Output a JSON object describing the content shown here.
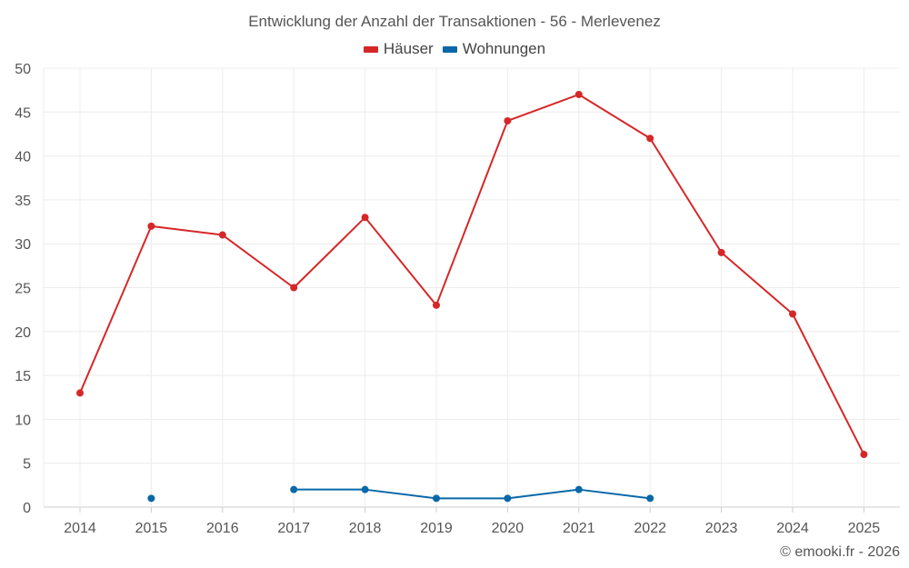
{
  "chart_data": {
    "type": "line",
    "title": "Entwicklung der Anzahl der Transaktionen - 56 - Merlevenez",
    "xlabel": "",
    "ylabel": "",
    "categories": [
      "2014",
      "2015",
      "2016",
      "2017",
      "2018",
      "2019",
      "2020",
      "2021",
      "2022",
      "2023",
      "2024",
      "2025"
    ],
    "ylim": [
      0,
      50
    ],
    "yticks": [
      "0",
      "5",
      "10",
      "15",
      "20",
      "25",
      "30",
      "35",
      "40",
      "45",
      "50"
    ],
    "grid": true,
    "legend_position": "top-center",
    "series": [
      {
        "name": "Häuser",
        "color": "#d62728",
        "values": [
          13,
          32,
          31,
          25,
          33,
          23,
          44,
          47,
          42,
          29,
          22,
          6
        ]
      },
      {
        "name": "Wohnungen",
        "color": "#0868a8",
        "values": [
          null,
          1,
          null,
          2,
          2,
          1,
          1,
          2,
          1,
          null,
          null,
          null
        ]
      }
    ]
  },
  "footer": {
    "credit": "© emooki.fr - 2026"
  }
}
